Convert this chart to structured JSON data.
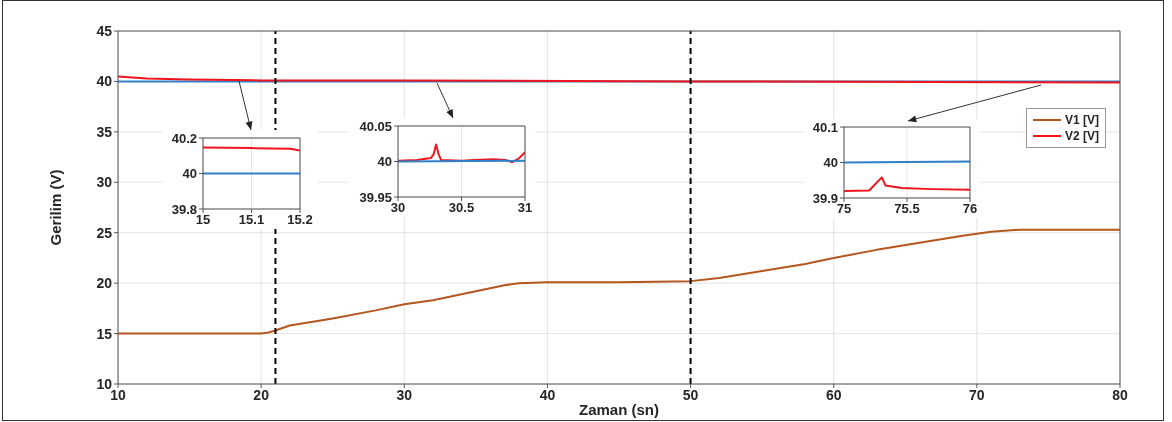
{
  "chart_data": [
    {
      "type": "line",
      "xlabel": "Zaman (sn)",
      "ylabel": "Gerilim (V)",
      "xlim": [
        10,
        80
      ],
      "xticks": [
        10,
        20,
        30,
        40,
        50,
        60,
        70,
        80
      ],
      "ylim": [
        10,
        45
      ],
      "yticks": [
        10,
        15,
        20,
        25,
        30,
        35,
        40,
        45
      ],
      "grid": true,
      "legend": "right",
      "line_style": "solid",
      "series": [
        {
          "color": "#2f80c8",
          "x": [
            10,
            80
          ],
          "values": [
            40,
            40
          ]
        },
        {
          "name": "V1 [V]",
          "color": "#b5561f",
          "x": [
            10,
            15,
            20,
            20.5,
            21,
            22,
            25,
            28,
            30,
            32,
            35,
            37,
            38,
            40,
            45,
            50,
            52,
            55,
            58,
            60,
            63,
            66,
            69,
            71,
            73,
            76,
            80
          ],
          "values": [
            15,
            15,
            15,
            15.1,
            15.3,
            15.8,
            16.5,
            17.3,
            17.9,
            18.3,
            19.2,
            19.8,
            20,
            20.1,
            20.1,
            20.2,
            20.5,
            21.2,
            21.9,
            22.5,
            23.3,
            24,
            24.7,
            25.1,
            25.3,
            25.3,
            25.3
          ]
        },
        {
          "name": "V2 [V]",
          "color": "#f0141e",
          "x": [
            10,
            12,
            15,
            20,
            30,
            50,
            80
          ],
          "values": [
            40.5,
            40.3,
            40.2,
            40.1,
            40.1,
            40,
            39.9
          ]
        }
      ],
      "ref_lines": [
        {
          "axis": "x",
          "value": 21,
          "color": "#000000",
          "line_style": "dashed"
        },
        {
          "axis": "x",
          "value": 50,
          "color": "#000000",
          "line_style": "dashed"
        }
      ]
    },
    {
      "type": "line",
      "xlim": [
        15,
        15.2
      ],
      "xticks": [
        15,
        15.1,
        15.2
      ],
      "ylim": [
        39.8,
        40.2
      ],
      "yticks": [
        39.8,
        40,
        40.2
      ],
      "grid": true,
      "line_style": "solid",
      "series": [
        {
          "color": "#f0141e",
          "x": [
            15,
            15.1,
            15.18,
            15.2
          ],
          "values": [
            40.146,
            40.143,
            40.14,
            40.13
          ]
        },
        {
          "color": "#2f80c8",
          "x": [
            15,
            15.2
          ],
          "values": [
            40,
            40
          ]
        }
      ]
    },
    {
      "type": "line",
      "xlim": [
        30,
        31
      ],
      "xticks": [
        30,
        30.5,
        31
      ],
      "ylim": [
        39.95,
        40.05
      ],
      "yticks": [
        39.95,
        40,
        40.05
      ],
      "grid": true,
      "line_style": "solid",
      "series": [
        {
          "color": "#f0141e",
          "x": [
            30,
            30.15,
            30.26,
            30.28,
            30.3,
            30.32,
            30.34,
            30.5,
            30.6,
            30.75,
            30.85,
            30.9,
            30.95,
            31
          ],
          "values": [
            40.001,
            40.002,
            40.005,
            40.01,
            40.024,
            40.01,
            40.002,
            40.001,
            40.002,
            40.003,
            40.002,
            39.999,
            40.004,
            40.013
          ]
        },
        {
          "color": "#2f80c8",
          "x": [
            30,
            31
          ],
          "values": [
            40,
            40.001
          ]
        }
      ]
    },
    {
      "type": "line",
      "xlim": [
        75,
        76
      ],
      "xticks": [
        75,
        75.5,
        76
      ],
      "ylim": [
        39.9,
        40.1
      ],
      "yticks": [
        39.9,
        40,
        40.1
      ],
      "grid": true,
      "line_style": "solid",
      "series": [
        {
          "color": "#f0141e",
          "x": [
            75,
            75.2,
            75.3,
            75.33,
            75.46,
            75.7,
            76
          ],
          "values": [
            39.92,
            39.921,
            39.958,
            39.935,
            39.928,
            39.925,
            39.923
          ]
        },
        {
          "color": "#2f80c8",
          "x": [
            75,
            76
          ],
          "values": [
            40,
            40.003
          ]
        }
      ]
    }
  ]
}
